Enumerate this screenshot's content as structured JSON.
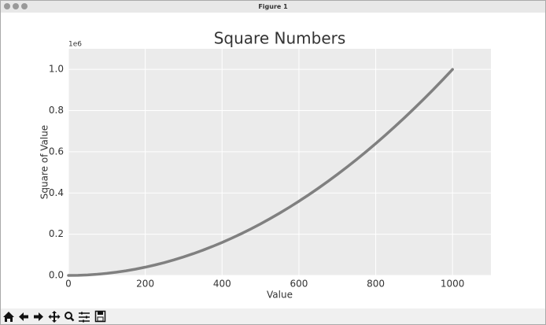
{
  "window_title": "Figure 1",
  "chart_data": {
    "type": "line",
    "title": "Square Numbers",
    "x_label": "Value",
    "y_label": "Square of Value",
    "y_offset_label": "1e6",
    "x": [
      0,
      25,
      50,
      75,
      100,
      125,
      150,
      175,
      200,
      225,
      250,
      275,
      300,
      325,
      350,
      375,
      400,
      425,
      450,
      475,
      500,
      525,
      550,
      575,
      600,
      625,
      650,
      675,
      700,
      725,
      750,
      775,
      800,
      825,
      850,
      875,
      900,
      925,
      950,
      975,
      1000
    ],
    "series": [
      {
        "color": "#808080",
        "values": [
          0,
          625,
          2500,
          5625,
          10000,
          15625,
          22500,
          30625,
          40000,
          50625,
          62500,
          75625,
          90000,
          105625,
          122500,
          140625,
          160000,
          180625,
          202500,
          225625,
          250000,
          275625,
          302500,
          330625,
          360000,
          390625,
          422500,
          455625,
          490000,
          525625,
          562500,
          600625,
          640000,
          680625,
          722500,
          765625,
          810000,
          855625,
          902500,
          950625,
          1000000
        ]
      }
    ],
    "xlim": [
      0,
      1100
    ],
    "ylim": [
      0,
      1100000
    ],
    "xticks": [
      0,
      200,
      400,
      600,
      800,
      1000
    ],
    "yticks": [
      {
        "value": 0,
        "label": "0.0"
      },
      {
        "value": 200000,
        "label": "0.2"
      },
      {
        "value": 400000,
        "label": "0.4"
      },
      {
        "value": 600000,
        "label": "0.6"
      },
      {
        "value": 800000,
        "label": "0.8"
      },
      {
        "value": 1000000,
        "label": "1.0"
      }
    ],
    "grid": true
  }
}
